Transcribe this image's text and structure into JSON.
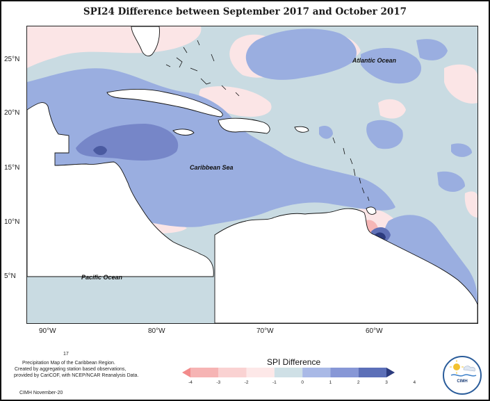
{
  "title": "SPI24 Difference between September 2017 and October 2017",
  "axes": {
    "lat_labels": [
      "25°N",
      "20°N",
      "15°N",
      "10°N",
      "5°N"
    ],
    "lon_labels": [
      "90°W",
      "80°W",
      "70°W",
      "60°W"
    ]
  },
  "labels": {
    "atlantic": "Atlantic Ocean",
    "caribbean": "Caribbean Sea",
    "pacific": "Pacific Ocean"
  },
  "legend": {
    "title": "SPI Difference",
    "ticks": [
      "-4",
      "-3",
      "-2",
      "-1",
      "0",
      "1",
      "2",
      "3",
      "4"
    ],
    "colors": [
      "#f28b8b",
      "#f6b4b4",
      "#fad2d2",
      "#fde8e8",
      "#cfe0e6",
      "#a9b9e6",
      "#8797d6",
      "#5c6fb8",
      "#2c3b7e"
    ]
  },
  "notes": {
    "number": "17",
    "line1": "Precipitation Map of the Caribbean Region.",
    "line2": "Created by aggregating station based observations,",
    "line3": "provided by CariCOF, with NCEP/NCAR Reanalysis Data.",
    "credit": "CIMH November-20"
  },
  "logo": {
    "text": "CIMH"
  }
}
